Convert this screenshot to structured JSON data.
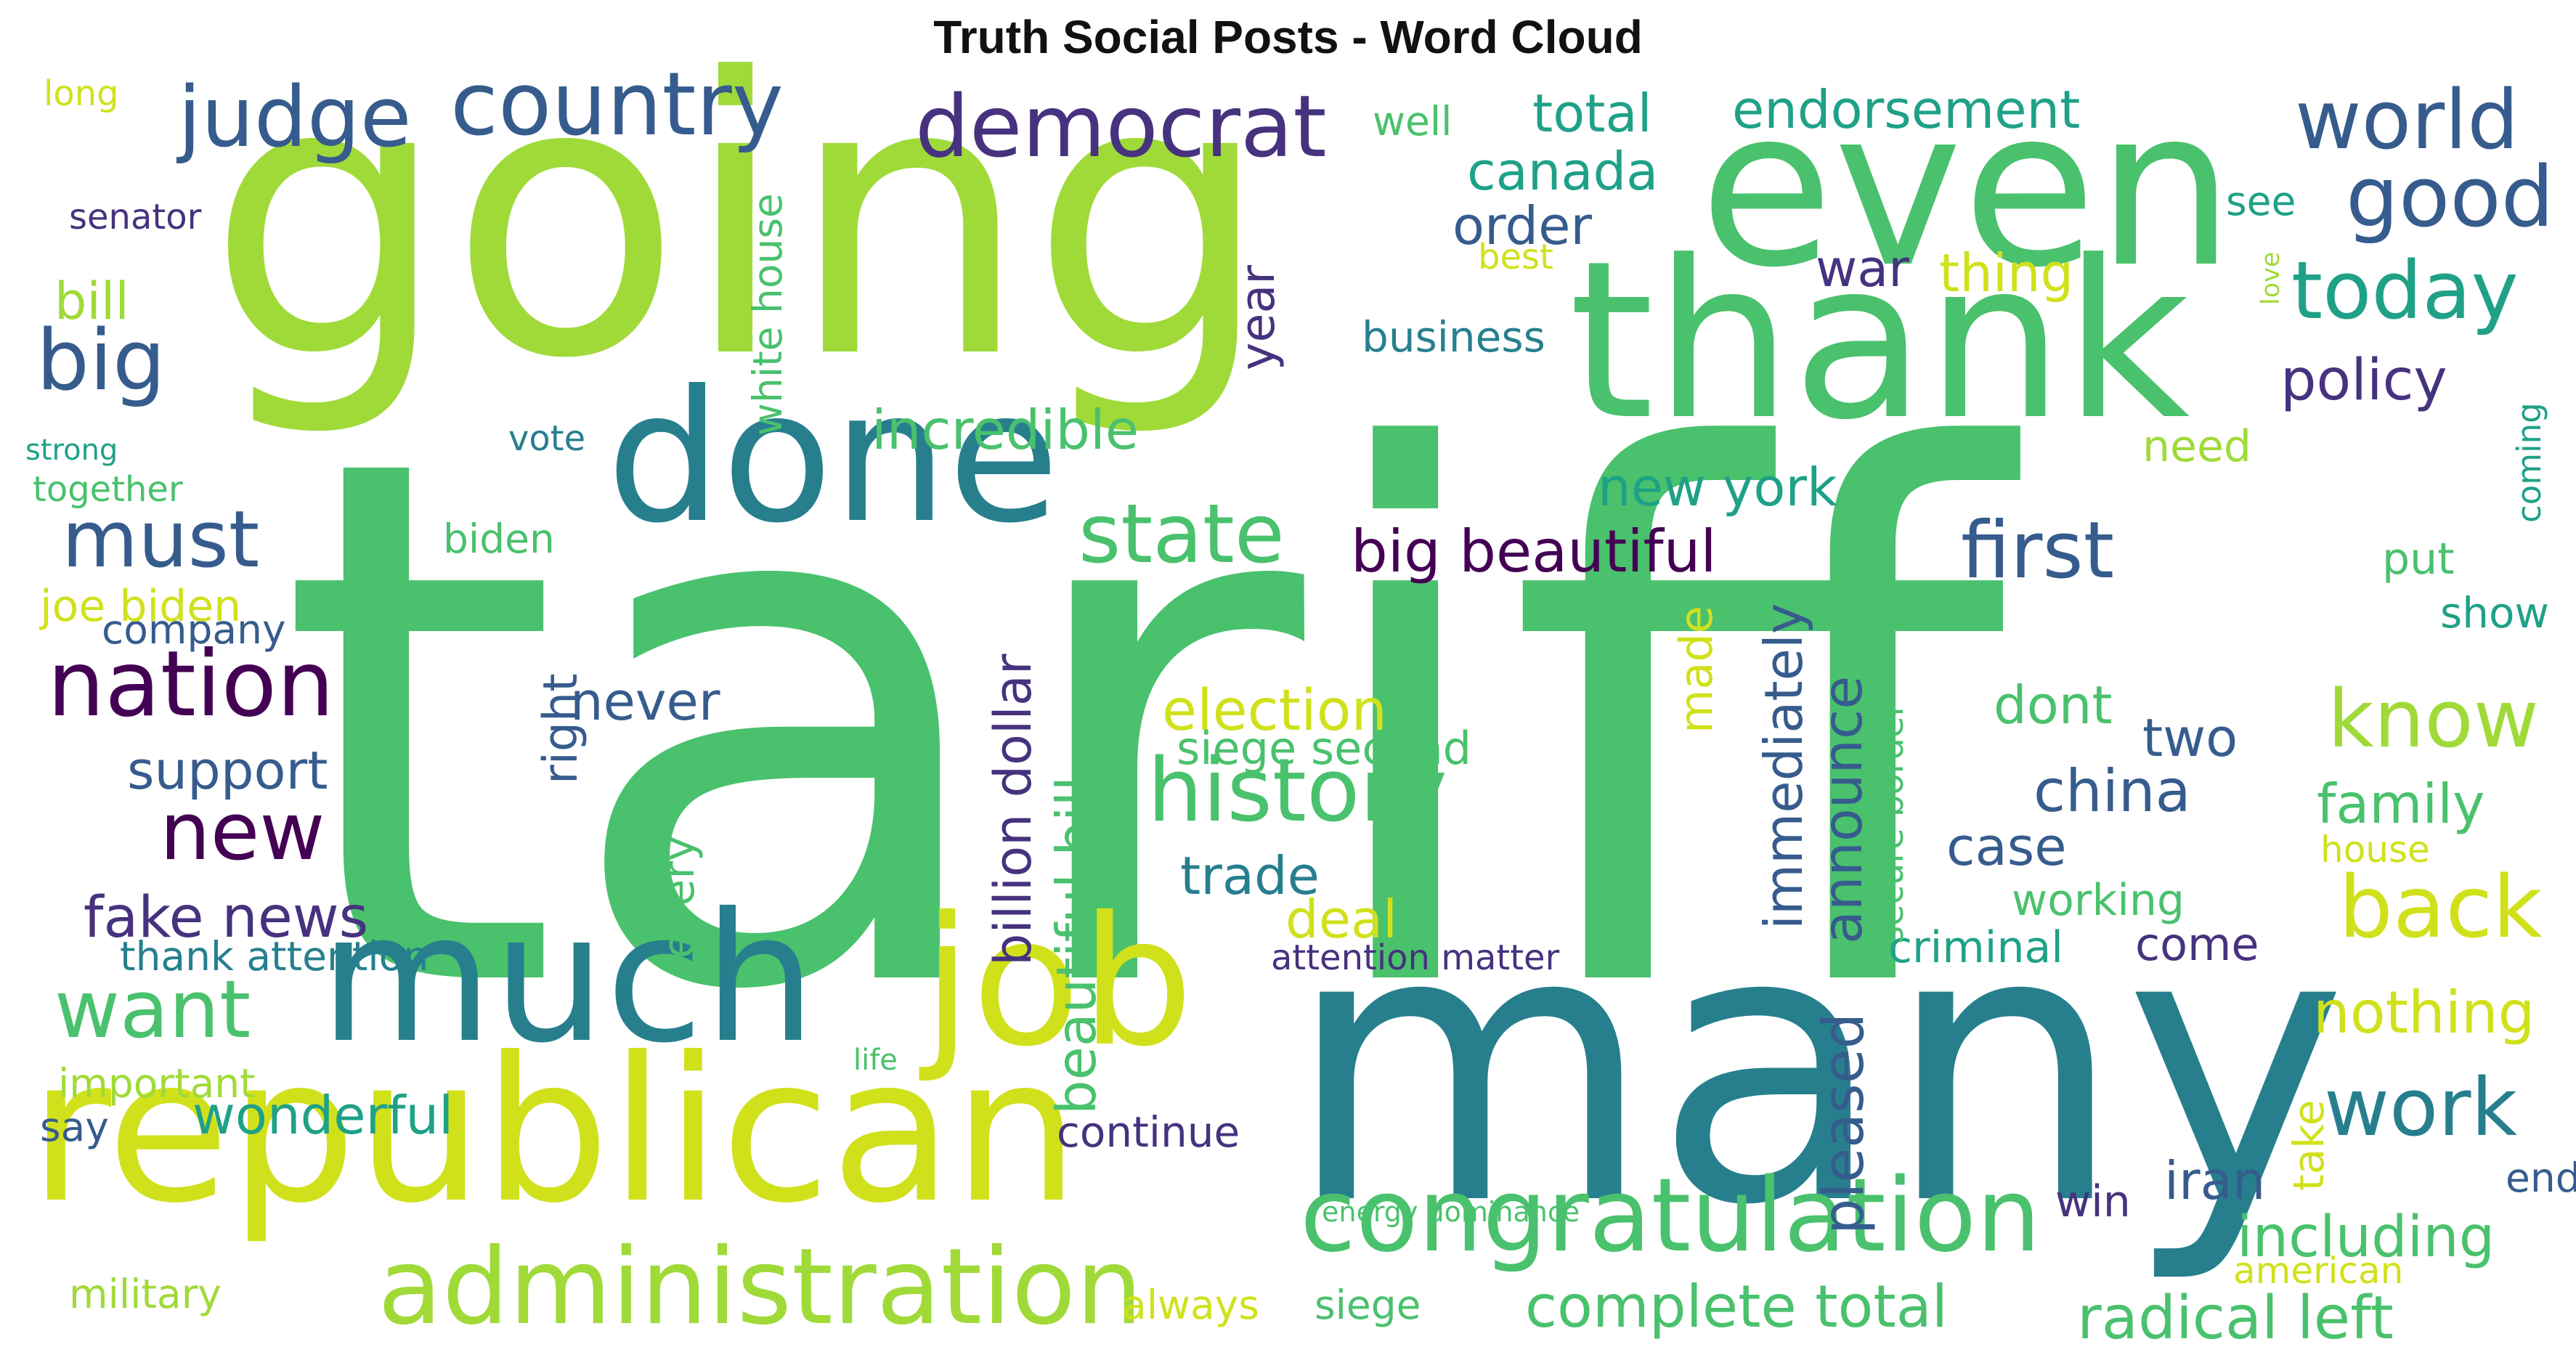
{
  "title": "Truth Social Posts - Word Cloud",
  "palette": {
    "yellow": "#d0e11c",
    "lime": "#a0da39",
    "green": "#4ac16d",
    "teal": "#1fa187",
    "cyan": "#277f8e",
    "blue": "#365c8d",
    "indigo": "#46327e",
    "purple": "#440154"
  },
  "words": [
    {
      "text": "tariff",
      "color": "green",
      "rotate": false
    },
    {
      "text": "going",
      "color": "lime",
      "rotate": false
    },
    {
      "text": "many",
      "color": "cyan",
      "rotate": false
    },
    {
      "text": "republican",
      "color": "yellow",
      "rotate": false
    },
    {
      "text": "even",
      "color": "green",
      "rotate": false
    },
    {
      "text": "thank",
      "color": "green",
      "rotate": false
    },
    {
      "text": "much",
      "color": "cyan",
      "rotate": false
    },
    {
      "text": "job",
      "color": "yellow",
      "rotate": false
    },
    {
      "text": "done",
      "color": "cyan",
      "rotate": false
    },
    {
      "text": "administration",
      "color": "lime",
      "rotate": false
    },
    {
      "text": "congratulation",
      "color": "green",
      "rotate": false
    },
    {
      "text": "history",
      "color": "green",
      "rotate": false
    },
    {
      "text": "democrat",
      "color": "indigo",
      "rotate": false
    },
    {
      "text": "country",
      "color": "blue",
      "rotate": false
    },
    {
      "text": "judge",
      "color": "blue",
      "rotate": false
    },
    {
      "text": "world",
      "color": "blue",
      "rotate": false
    },
    {
      "text": "good",
      "color": "blue",
      "rotate": false
    },
    {
      "text": "today",
      "color": "teal",
      "rotate": false
    },
    {
      "text": "nation",
      "color": "purple",
      "rotate": false
    },
    {
      "text": "state",
      "color": "green",
      "rotate": false
    },
    {
      "text": "first",
      "color": "blue",
      "rotate": false
    },
    {
      "text": "know",
      "color": "lime",
      "rotate": false
    },
    {
      "text": "back",
      "color": "yellow",
      "rotate": false
    },
    {
      "text": "work",
      "color": "cyan",
      "rotate": false
    },
    {
      "text": "big",
      "color": "blue",
      "rotate": false
    },
    {
      "text": "must",
      "color": "blue",
      "rotate": false
    },
    {
      "text": "new",
      "color": "purple",
      "rotate": false
    },
    {
      "text": "want",
      "color": "green",
      "rotate": false
    },
    {
      "text": "complete total",
      "color": "green",
      "rotate": false
    },
    {
      "text": "radical left",
      "color": "green",
      "rotate": false
    },
    {
      "text": "including",
      "color": "green",
      "rotate": false
    },
    {
      "text": "nothing",
      "color": "yellow",
      "rotate": false
    },
    {
      "text": "election",
      "color": "yellow",
      "rotate": false
    },
    {
      "text": "big beautiful",
      "color": "purple",
      "rotate": false
    },
    {
      "text": "incredible",
      "color": "green",
      "rotate": false
    },
    {
      "text": "endorsement",
      "color": "teal",
      "rotate": false
    },
    {
      "text": "total",
      "color": "teal",
      "rotate": false
    },
    {
      "text": "canada",
      "color": "teal",
      "rotate": false
    },
    {
      "text": "order",
      "color": "blue",
      "rotate": false
    },
    {
      "text": "new york",
      "color": "teal",
      "rotate": false
    },
    {
      "text": "fake news",
      "color": "indigo",
      "rotate": false
    },
    {
      "text": "wonderful",
      "color": "teal",
      "rotate": false
    },
    {
      "text": "support",
      "color": "blue",
      "rotate": false
    },
    {
      "text": "never",
      "color": "blue",
      "rotate": false
    },
    {
      "text": "china",
      "color": "blue",
      "rotate": false
    },
    {
      "text": "family",
      "color": "green",
      "rotate": false
    },
    {
      "text": "policy",
      "color": "indigo",
      "rotate": false
    },
    {
      "text": "trade",
      "color": "cyan",
      "rotate": false
    },
    {
      "text": "deal",
      "color": "yellow",
      "rotate": false
    },
    {
      "text": "iran",
      "color": "blue",
      "rotate": false
    },
    {
      "text": "thing",
      "color": "yellow",
      "rotate": false
    },
    {
      "text": "war",
      "color": "indigo",
      "rotate": false
    },
    {
      "text": "dont",
      "color": "green",
      "rotate": false
    },
    {
      "text": "two",
      "color": "blue",
      "rotate": false
    },
    {
      "text": "case",
      "color": "blue",
      "rotate": false
    },
    {
      "text": "come",
      "color": "indigo",
      "rotate": false
    },
    {
      "text": "working",
      "color": "green",
      "rotate": false
    },
    {
      "text": "criminal",
      "color": "teal",
      "rotate": false
    },
    {
      "text": "siege second",
      "color": "green",
      "rotate": false
    },
    {
      "text": "continue",
      "color": "indigo",
      "rotate": false
    },
    {
      "text": "business",
      "color": "cyan",
      "rotate": false
    },
    {
      "text": "bill",
      "color": "lime",
      "rotate": false
    },
    {
      "text": "company",
      "color": "blue",
      "rotate": false
    },
    {
      "text": "important",
      "color": "lime",
      "rotate": false
    },
    {
      "text": "military",
      "color": "lime",
      "rotate": false
    },
    {
      "text": "biden",
      "color": "green",
      "rotate": false
    },
    {
      "text": "joe biden",
      "color": "yellow",
      "rotate": false
    },
    {
      "text": "well",
      "color": "green",
      "rotate": false
    },
    {
      "text": "see",
      "color": "teal",
      "rotate": false
    },
    {
      "text": "need",
      "color": "lime",
      "rotate": false
    },
    {
      "text": "put",
      "color": "green",
      "rotate": false
    },
    {
      "text": "show",
      "color": "teal",
      "rotate": false
    },
    {
      "text": "house",
      "color": "yellow",
      "rotate": false
    },
    {
      "text": "end",
      "color": "blue",
      "rotate": false
    },
    {
      "text": "win",
      "color": "indigo",
      "rotate": false
    },
    {
      "text": "american",
      "color": "yellow",
      "rotate": false
    },
    {
      "text": "say",
      "color": "blue",
      "rotate": false
    },
    {
      "text": "always",
      "color": "yellow",
      "rotate": false
    },
    {
      "text": "siege",
      "color": "green",
      "rotate": false
    },
    {
      "text": "thank attention",
      "color": "cyan",
      "rotate": false
    },
    {
      "text": "attention matter",
      "color": "indigo",
      "rotate": false
    },
    {
      "text": "vote",
      "color": "cyan",
      "rotate": false
    },
    {
      "text": "senator",
      "color": "indigo",
      "rotate": false
    },
    {
      "text": "long",
      "color": "yellow",
      "rotate": false
    },
    {
      "text": "best",
      "color": "yellow",
      "rotate": false
    },
    {
      "text": "strong",
      "color": "teal",
      "rotate": false
    },
    {
      "text": "together",
      "color": "green",
      "rotate": false
    },
    {
      "text": "life",
      "color": "green",
      "rotate": false
    },
    {
      "text": "energy dominance",
      "color": "green",
      "rotate": false
    },
    {
      "text": "white house",
      "color": "green",
      "rotate": true
    },
    {
      "text": "year",
      "color": "indigo",
      "rotate": true
    },
    {
      "text": "right",
      "color": "blue",
      "rotate": true
    },
    {
      "text": "every",
      "color": "green",
      "rotate": true
    },
    {
      "text": "billion dollar",
      "color": "indigo",
      "rotate": true
    },
    {
      "text": "beautiful bill",
      "color": "green",
      "rotate": true
    },
    {
      "text": "made",
      "color": "yellow",
      "rotate": true
    },
    {
      "text": "immediately",
      "color": "blue",
      "rotate": true
    },
    {
      "text": "announce",
      "color": "blue",
      "rotate": true
    },
    {
      "text": "pleased",
      "color": "blue",
      "rotate": true
    },
    {
      "text": "secure border",
      "color": "green",
      "rotate": true
    },
    {
      "text": "take",
      "color": "yellow",
      "rotate": true
    },
    {
      "text": "coming",
      "color": "teal",
      "rotate": true
    },
    {
      "text": "love",
      "color": "lime",
      "rotate": true
    }
  ]
}
